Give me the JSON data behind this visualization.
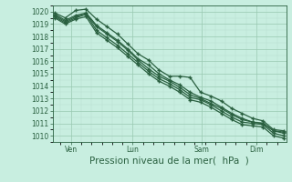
{
  "bg_color": "#c8eee0",
  "grid_major_color": "#98c8b0",
  "grid_minor_color": "#b8dece",
  "line_color": "#2a6040",
  "xlabel": "Pression niveau de la mer(  hPa  )",
  "xlabel_fontsize": 7.5,
  "ylim": [
    1009.5,
    1020.5
  ],
  "yticks": [
    1010,
    1011,
    1012,
    1013,
    1014,
    1015,
    1016,
    1017,
    1018,
    1019,
    1020
  ],
  "xtick_labels": [
    "Ven",
    "Lun",
    "Sam",
    "Dim"
  ],
  "xtick_positions": [
    0.07,
    0.34,
    0.64,
    0.88
  ],
  "series": [
    [
      1019.9,
      1019.5,
      1020.1,
      1020.2,
      1019.4,
      1018.8,
      1018.2,
      1017.4,
      1016.6,
      1016.1,
      1015.3,
      1014.8,
      1014.8,
      1014.7,
      1013.5,
      1013.2,
      1012.8,
      1012.2,
      1011.8,
      1011.4,
      1011.2,
      1010.5,
      1010.4
    ],
    [
      1019.8,
      1019.3,
      1019.7,
      1019.9,
      1018.9,
      1018.3,
      1017.7,
      1017.0,
      1016.2,
      1015.7,
      1015.0,
      1014.5,
      1014.1,
      1013.5,
      1013.1,
      1012.8,
      1012.3,
      1011.8,
      1011.4,
      1011.1,
      1011.0,
      1010.4,
      1010.3
    ],
    [
      1019.7,
      1019.2,
      1019.6,
      1019.8,
      1018.8,
      1018.2,
      1017.6,
      1016.9,
      1016.1,
      1015.4,
      1014.8,
      1014.4,
      1013.9,
      1013.3,
      1013.0,
      1012.6,
      1012.2,
      1011.7,
      1011.3,
      1011.1,
      1011.0,
      1010.4,
      1010.2
    ],
    [
      1019.6,
      1019.1,
      1019.5,
      1019.8,
      1018.5,
      1017.9,
      1017.3,
      1016.6,
      1015.9,
      1015.2,
      1014.6,
      1014.2,
      1013.7,
      1013.1,
      1012.9,
      1012.5,
      1012.0,
      1011.5,
      1011.1,
      1011.0,
      1010.9,
      1010.2,
      1010.0
    ],
    [
      1019.5,
      1019.0,
      1019.4,
      1019.6,
      1018.3,
      1017.7,
      1017.1,
      1016.4,
      1015.7,
      1015.0,
      1014.4,
      1014.0,
      1013.5,
      1012.9,
      1012.7,
      1012.3,
      1011.8,
      1011.3,
      1010.9,
      1010.8,
      1010.7,
      1010.0,
      1009.8
    ]
  ]
}
